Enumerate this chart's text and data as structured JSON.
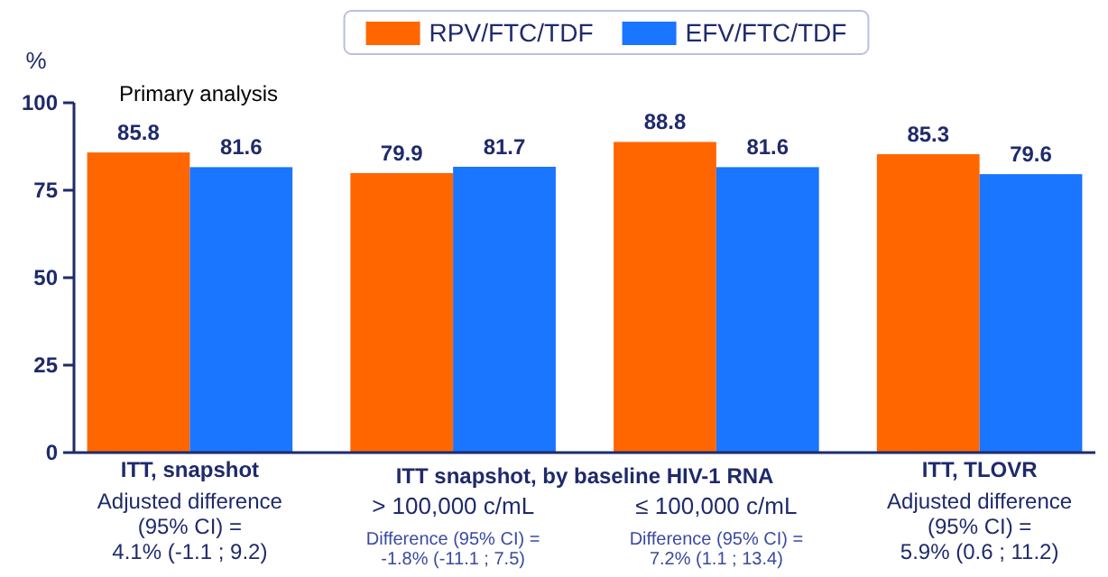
{
  "chart_data": {
    "type": "bar",
    "ylabel": "%",
    "categories": [
      "ITT, snapshot",
      "> 100,000 c/mL",
      "≤ 100,000 c/mL",
      "ITT, TLOVR"
    ],
    "series": [
      {
        "name": "RPV/FTC/TDF",
        "color": "#ff6600",
        "values": [
          85.8,
          79.9,
          88.8,
          85.3
        ]
      },
      {
        "name": "EFV/FTC/TDF",
        "color": "#1a75ff",
        "values": [
          81.6,
          81.7,
          81.6,
          79.6
        ]
      }
    ],
    "ylim": [
      0,
      100
    ],
    "yticks": [
      0,
      25,
      50,
      75,
      100
    ],
    "grid": false,
    "legend": "top",
    "data_labels": true,
    "annotations": [
      "Primary analysis",
      "ITT snapshot, by baseline HIV-1 RNA",
      "Adjusted difference\n(95% CI) =\n4.1% (-1.1 ; 9.2)",
      "Difference (95% CI) =\n-1.8% (-11.1 ; 7.5)",
      "Difference (95% CI) =\n7.2% (1.1 ; 13.4)",
      "Adjusted difference\n(95% CI) =\n5.9% (0.6 ; 11.2)"
    ]
  }
}
